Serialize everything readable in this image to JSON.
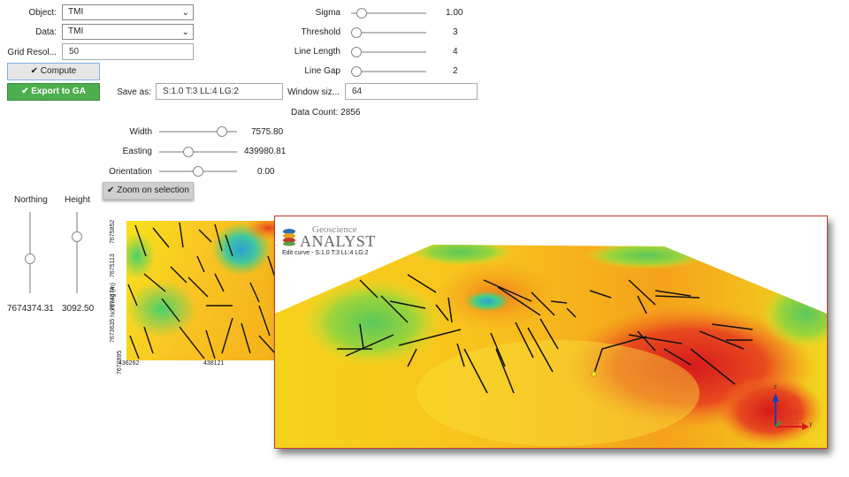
{
  "form": {
    "object_label": "Object:",
    "object_value": "TMI",
    "data_label": "Data:",
    "data_value": "TMI",
    "grid_label": "Grid Resol...",
    "grid_value": "50",
    "compute_label": "Compute",
    "export_label": "Export to GA",
    "save_as_label": "Save as:",
    "save_as_value": "S:1.0 T:3 LL:4 LG:2",
    "window_size_label": "Window siz...",
    "window_size_value": "64",
    "data_count": "Data Count: 2856"
  },
  "params": [
    {
      "label": "Sigma",
      "value": "1.00",
      "fraction": 0.08
    },
    {
      "label": "Threshold",
      "value": "3",
      "fraction": 0.0
    },
    {
      "label": "Line Length",
      "value": "4",
      "fraction": 0.0
    },
    {
      "label": "Line Gap",
      "value": "2",
      "fraction": 0.0
    }
  ],
  "window": [
    {
      "label": "Width",
      "value": "7575.80",
      "fraction": 0.85
    },
    {
      "label": "Easting",
      "value": "439980.81",
      "fraction": 0.35
    },
    {
      "label": "Orientation",
      "value": "0.00",
      "fraction": 0.5
    }
  ],
  "zoom_label": "Zoom on selection",
  "vertical": [
    {
      "label": "Northing",
      "value": "7674374.31",
      "fraction": 0.55
    },
    {
      "label": "Height",
      "value": "3092.50",
      "fraction": 0.25
    }
  ],
  "map": {
    "ylabel": "Northing (m)",
    "yticks": [
      "7675852",
      "7675113",
      "7674374",
      "7673635",
      "7672895"
    ],
    "xticks": [
      "436262",
      "438121"
    ]
  },
  "viewer": {
    "brand_top": "Geoscience",
    "brand_main": "ANALYST",
    "caption": "Edit curve - S:1.0 T:3 LL:4 LG:2",
    "axis_z": "z",
    "axis_y": "y"
  },
  "colors": {
    "success": "#4cae4c",
    "frame": "#c0392b",
    "low": "#2e9fd0",
    "high": "#d7191c"
  }
}
